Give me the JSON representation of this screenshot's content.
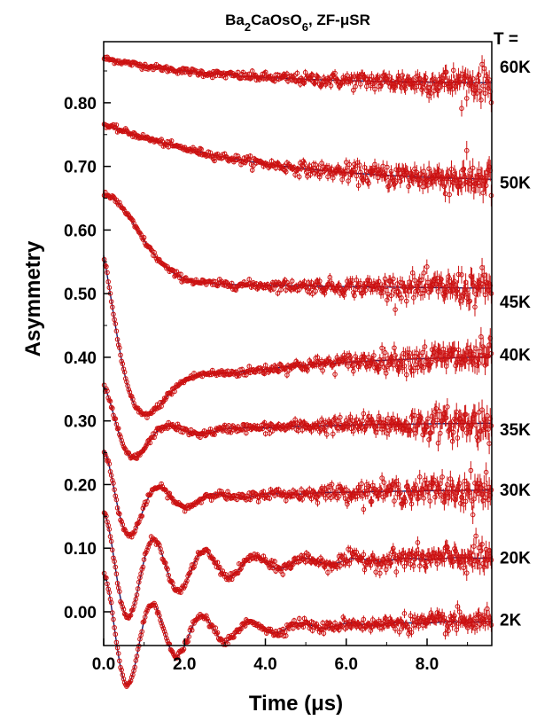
{
  "chart_data": {
    "type": "scatter",
    "title": "Ba2CaOsO6, ZF-μSR",
    "title_parts": {
      "base1": "Ba",
      "sub1": "2",
      "base2": "CaOsO",
      "sub2": "6",
      "suffix": ",  ZF-μSR"
    },
    "xlabel": "Time (μs)",
    "ylabel": "Asymmetry",
    "xlim": [
      0.0,
      9.6
    ],
    "ylim": [
      -0.053,
      0.896
    ],
    "xticks": [
      0.0,
      2.0,
      4.0,
      6.0,
      8.0
    ],
    "xtick_labels": [
      "0.0",
      "2.0",
      "4.0",
      "6.0",
      "8.0"
    ],
    "yticks": [
      0.0,
      0.1,
      0.2,
      0.3,
      0.4,
      0.5,
      0.6,
      0.7,
      0.8
    ],
    "ytick_labels": [
      "0.00",
      "0.10",
      "0.20",
      "0.30",
      "0.40",
      "0.50",
      "0.60",
      "0.70",
      "0.80"
    ],
    "legend_header": "T =",
    "grid": false,
    "marker_color": "#cc1111",
    "fit_color": "#1a1a66",
    "series": [
      {
        "name": "60K",
        "label_y": 0.857,
        "fit": {
          "model": "relax",
          "A0": 0.87,
          "Ainf": 0.83,
          "lambda": 0.35,
          "beta": 1.0
        },
        "noise": [
          0.0025,
          0.015
        ]
      },
      {
        "name": "50K",
        "label_y": 0.675,
        "fit": {
          "model": "relax",
          "A0": 0.765,
          "Ainf": 0.675,
          "lambda": 0.28,
          "beta": 1.1
        },
        "noise": [
          0.0025,
          0.017
        ]
      },
      {
        "name": "45K",
        "label_y": 0.488,
        "fit": {
          "model": "gauss_relax",
          "A0": 0.655,
          "A1": 0.52,
          "Ainf": 0.505,
          "sigma": 1.2,
          "lambda": 0.15
        },
        "noise": [
          0.0025,
          0.016
        ]
      },
      {
        "name": "40K",
        "label_y": 0.405,
        "fit": {
          "model": "osc",
          "A0": 0.56,
          "Ainf": 0.405,
          "f": 0.38,
          "lambdaT": 1.5,
          "lambdaL": 0.3,
          "phi": 0.0
        },
        "noise": [
          0.0025,
          0.016
        ]
      },
      {
        "name": "35K",
        "label_y": 0.287,
        "fit": {
          "model": "osc",
          "A0": 0.355,
          "Ainf": 0.298,
          "f": 0.6,
          "lambdaT": 1.2,
          "lambdaL": 0.3,
          "phi": 0.0
        },
        "noise": [
          0.0025,
          0.017
        ]
      },
      {
        "name": "30K",
        "label_y": 0.192,
        "fit": {
          "model": "osc",
          "A0": 0.255,
          "Ainf": 0.193,
          "f": 0.72,
          "lambdaT": 1.0,
          "lambdaL": 0.3,
          "phi": 0.0
        },
        "noise": [
          0.0025,
          0.016
        ]
      },
      {
        "name": "20K",
        "label_y": 0.086,
        "fit": {
          "model": "osc",
          "A0": 0.155,
          "Ainf": 0.09,
          "f": 0.8,
          "lambdaT": 0.55,
          "lambdaL": 0.2,
          "phi": 0.0
        },
        "noise": [
          0.0025,
          0.014
        ]
      },
      {
        "name": "2K",
        "label_y": -0.012,
        "fit": {
          "model": "osc",
          "A0": 0.06,
          "Ainf": -0.01,
          "f": 0.82,
          "lambdaT": 0.6,
          "lambdaL": 0.2,
          "phi": 0.0
        },
        "noise": [
          0.0025,
          0.011
        ]
      }
    ]
  }
}
